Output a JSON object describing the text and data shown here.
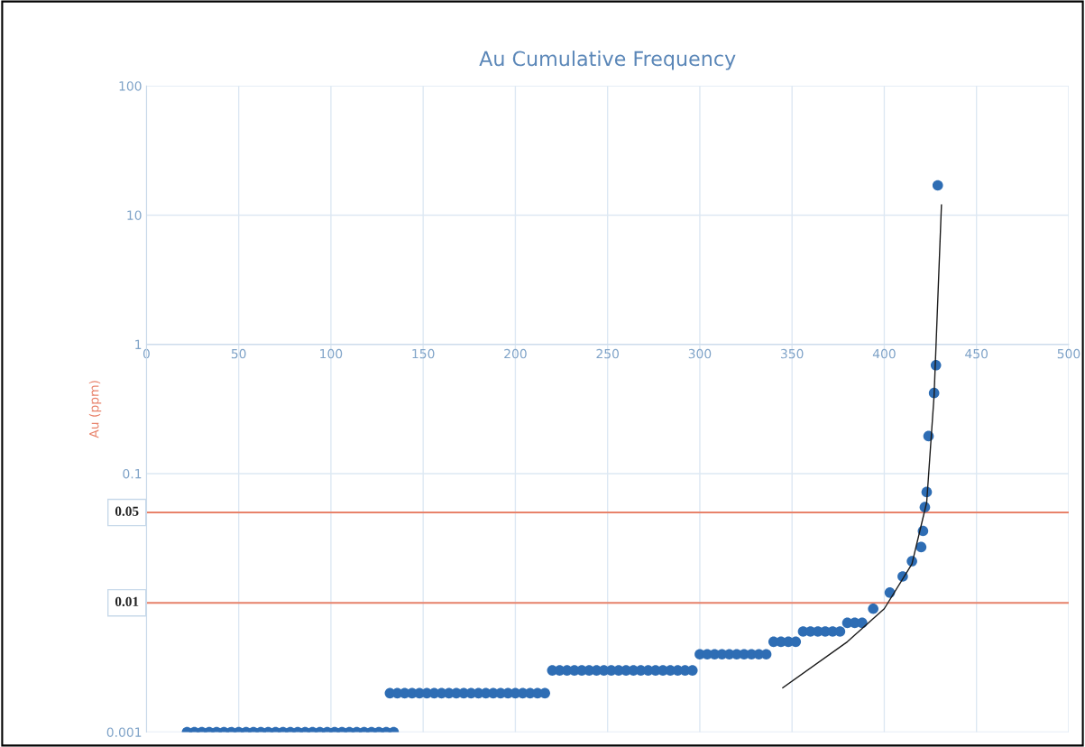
{
  "chart_data": {
    "type": "scatter",
    "title": "Au Cumulative Frequency",
    "ylabel": "Au (ppm)",
    "log": "y",
    "grid": true,
    "xlim": [
      0,
      500
    ],
    "xticks": [
      0,
      50,
      100,
      150,
      200,
      250,
      300,
      350,
      400,
      450,
      500
    ],
    "ylim": [
      0.001,
      100
    ],
    "yticks": [
      {
        "value": 0.001,
        "label": "0.001"
      },
      {
        "value": 0.01,
        "label": null
      },
      {
        "value": 0.1,
        "label": "0.1"
      },
      {
        "value": 1,
        "label": "1"
      },
      {
        "value": 10,
        "label": "10"
      },
      {
        "value": 100,
        "label": "100"
      }
    ],
    "ref_lines": [
      {
        "axis": "y",
        "value": 0.05,
        "label": "0.05",
        "color": "#e8826a"
      },
      {
        "axis": "y",
        "value": 0.01,
        "label": "0.01",
        "color": "#e8826a"
      }
    ],
    "series": [
      {
        "color": "#2e6db4",
        "marker": "circle",
        "x": [
          22,
          26,
          30,
          34,
          38,
          42,
          46,
          50,
          54,
          58,
          62,
          66,
          70,
          74,
          78,
          82,
          86,
          90,
          94,
          98,
          102,
          106,
          110,
          114,
          118,
          122,
          126,
          130,
          134,
          132,
          136,
          140,
          144,
          148,
          152,
          156,
          160,
          164,
          168,
          172,
          176,
          180,
          184,
          188,
          192,
          196,
          200,
          204,
          208,
          212,
          216,
          220,
          224,
          228,
          232,
          236,
          240,
          244,
          248,
          252,
          256,
          260,
          264,
          268,
          272,
          276,
          280,
          284,
          288,
          292,
          296,
          300,
          304,
          308,
          312,
          316,
          320,
          324,
          328,
          332,
          336,
          340,
          344,
          348,
          352,
          356,
          360,
          364,
          368,
          372,
          376,
          380,
          384,
          388,
          394,
          403,
          410,
          415,
          420,
          421,
          422,
          423,
          424,
          427,
          428,
          429
        ],
        "values": [
          0.001,
          0.001,
          0.001,
          0.001,
          0.001,
          0.001,
          0.001,
          0.001,
          0.001,
          0.001,
          0.001,
          0.001,
          0.001,
          0.001,
          0.001,
          0.001,
          0.001,
          0.001,
          0.001,
          0.001,
          0.001,
          0.001,
          0.001,
          0.001,
          0.001,
          0.001,
          0.001,
          0.001,
          0.001,
          0.002,
          0.002,
          0.002,
          0.002,
          0.002,
          0.002,
          0.002,
          0.002,
          0.002,
          0.002,
          0.002,
          0.002,
          0.002,
          0.002,
          0.002,
          0.002,
          0.002,
          0.002,
          0.002,
          0.002,
          0.002,
          0.002,
          0.003,
          0.003,
          0.003,
          0.003,
          0.003,
          0.003,
          0.003,
          0.003,
          0.003,
          0.003,
          0.003,
          0.003,
          0.003,
          0.003,
          0.003,
          0.003,
          0.003,
          0.003,
          0.003,
          0.003,
          0.004,
          0.004,
          0.004,
          0.004,
          0.004,
          0.004,
          0.004,
          0.004,
          0.004,
          0.004,
          0.005,
          0.005,
          0.005,
          0.005,
          0.006,
          0.006,
          0.006,
          0.006,
          0.006,
          0.006,
          0.007,
          0.007,
          0.007,
          0.009,
          0.012,
          0.016,
          0.021,
          0.027,
          0.036,
          0.055,
          0.072,
          0.195,
          0.42,
          0.69,
          17
        ]
      },
      {
        "type": "line",
        "marker": "none",
        "color": "#1a1a1a",
        "x": [
          345,
          380,
          400,
          415,
          423,
          427,
          431
        ],
        "values": [
          0.0022,
          0.005,
          0.009,
          0.02,
          0.06,
          0.4,
          12
        ]
      }
    ]
  }
}
